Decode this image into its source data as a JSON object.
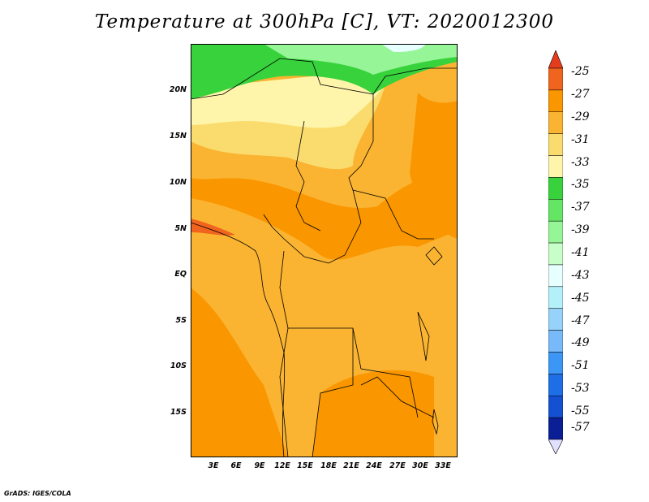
{
  "title": "Temperature at 300hPa [C], VT: 2020012300",
  "credit": "GrADS: IGES/COLA",
  "y_axis_labels": [
    "20N",
    "15N",
    "10N",
    "5N",
    "EQ",
    "5S",
    "10S",
    "15S"
  ],
  "x_axis_labels": [
    "3E",
    "6E",
    "9E",
    "12E",
    "15E",
    "18E",
    "21E",
    "24E",
    "27E",
    "30E",
    "33E"
  ],
  "colorbar": {
    "labels": [
      "-25",
      "-27",
      "-29",
      "-31",
      "-33",
      "-35",
      "-37",
      "-39",
      "-41",
      "-43",
      "-45",
      "-47",
      "-49",
      "-51",
      "-53",
      "-55",
      "-57"
    ],
    "colors": [
      "#f0641e",
      "#fa9600",
      "#fab432",
      "#fadc6e",
      "#fff5aa",
      "#37d23c",
      "#64e664",
      "#96f596",
      "#c8ffc8",
      "#e6ffff",
      "#b4f0fa",
      "#96d2fa",
      "#78b9fa",
      "#3c96f5",
      "#1e6ee6",
      "#1450d2",
      "#0a1e96"
    ],
    "top_triangle_color": "#e63c1e",
    "bottom_triangle_color": "#e0e0ff"
  }
}
